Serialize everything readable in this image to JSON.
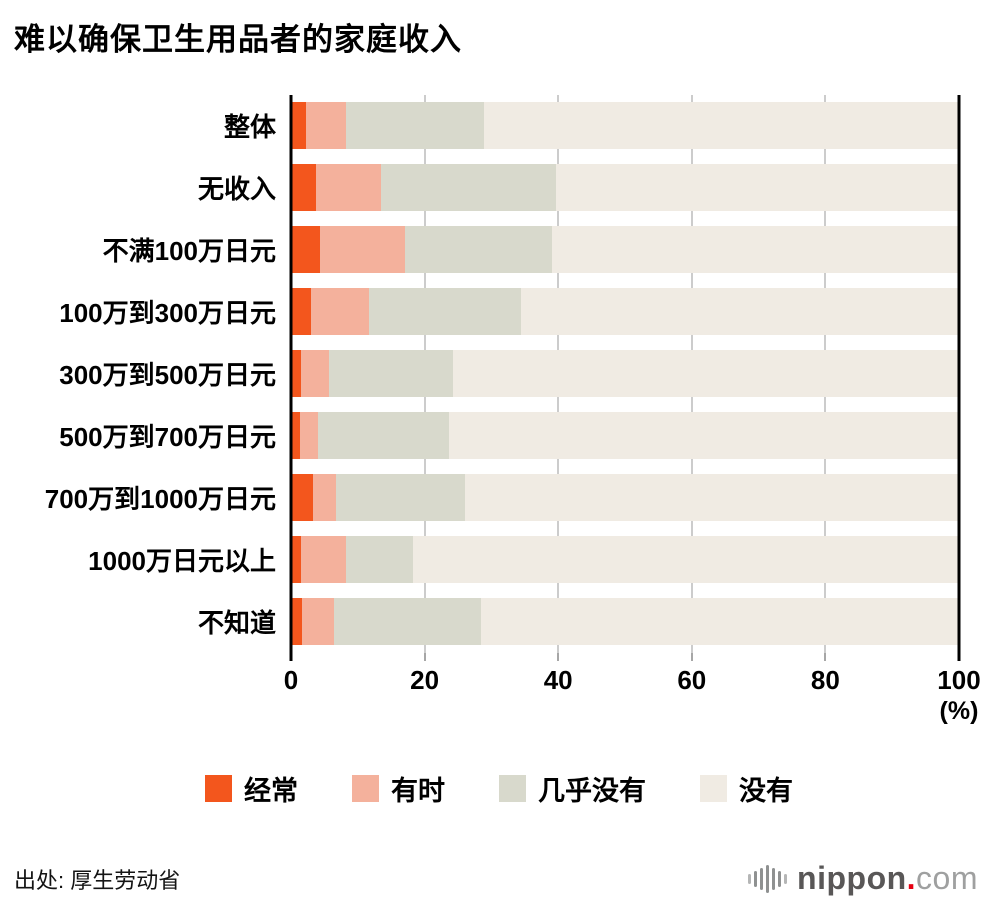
{
  "title": "难以确保卫生用品者的家庭收入",
  "chart_data": {
    "type": "bar",
    "stacked": true,
    "orientation": "horizontal",
    "title": "难以确保卫生用品者的家庭收入",
    "categories": [
      "整体",
      "无收入",
      "不满100万日元",
      "100万到300万日元",
      "300万到500万日元",
      "500万到700万日元",
      "700万到1000万日元",
      "1000万日元以上",
      "不知道"
    ],
    "series": [
      {
        "name": "经常",
        "color": "#f3561d",
        "values": [
          2.3,
          3.7,
          4.3,
          3.0,
          1.5,
          1.3,
          3.3,
          1.5,
          1.7
        ]
      },
      {
        "name": "有时",
        "color": "#f4b19c",
        "values": [
          5.9,
          9.8,
          12.8,
          8.7,
          4.2,
          2.7,
          3.5,
          6.8,
          4.8
        ]
      },
      {
        "name": "几乎没有",
        "color": "#d8d9cc",
        "values": [
          20.7,
          26.2,
          22.0,
          22.8,
          18.6,
          19.7,
          19.2,
          10.0,
          22.0
        ]
      },
      {
        "name": "没有",
        "color": "#f0ebe3",
        "values": [
          71.1,
          60.3,
          60.9,
          65.5,
          75.7,
          76.3,
          74.0,
          81.7,
          71.5
        ]
      }
    ],
    "xlim": [
      0,
      100
    ],
    "x_ticks": [
      0,
      20,
      40,
      60,
      80,
      100
    ],
    "x_unit": "(%)",
    "grid": "vertical",
    "gridline_color": "#cccccc",
    "legend_position": "bottom"
  },
  "legend": {
    "items": [
      "经常",
      "有时",
      "几乎没有",
      "没有"
    ]
  },
  "footer": {
    "source": "出处: 厚生劳动省",
    "logo": {
      "brand": "nippon",
      "dot": ".",
      "tld": "com"
    }
  }
}
